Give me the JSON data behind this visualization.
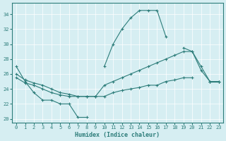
{
  "xlabel": "Humidex (Indice chaleur)",
  "bg_color": "#d6eef2",
  "line_color": "#2d7d7a",
  "grid_color": "#ffffff",
  "xlim": [
    -0.5,
    23.5
  ],
  "ylim": [
    19.5,
    35.5
  ],
  "xticks": [
    0,
    1,
    2,
    3,
    4,
    5,
    6,
    7,
    8,
    9,
    10,
    11,
    12,
    13,
    14,
    15,
    16,
    17,
    18,
    19,
    20,
    21,
    22,
    23
  ],
  "yticks": [
    20,
    22,
    24,
    26,
    28,
    30,
    32,
    34
  ],
  "line1_segs": [
    {
      "x": [
        0,
        1,
        2,
        3,
        4,
        5,
        6,
        7,
        8
      ],
      "y": [
        27,
        25,
        23.5,
        22.5,
        22.5,
        22,
        22,
        20.2,
        20.2
      ]
    },
    {
      "x": [
        10,
        11,
        12,
        13,
        14,
        15,
        16,
        17
      ],
      "y": [
        27,
        30,
        32,
        33.5,
        34.5,
        34.5,
        34.5,
        31
      ]
    },
    {
      "x": [
        19,
        20,
        21,
        22,
        23
      ],
      "y": [
        29.5,
        29,
        26.5,
        25,
        25
      ]
    }
  ],
  "line2": {
    "x": [
      0,
      1,
      2,
      3,
      4,
      5,
      6,
      7,
      8,
      9,
      10,
      11,
      12,
      13,
      14,
      15,
      16,
      17,
      18,
      19,
      20,
      21,
      22,
      23
    ],
    "y": [
      26,
      25.2,
      24.8,
      24.5,
      24,
      23.5,
      23.3,
      23,
      23,
      23,
      24.5,
      25,
      25.5,
      26,
      26.5,
      27,
      27.5,
      28,
      28.5,
      29,
      29,
      27,
      25,
      25
    ]
  },
  "line3": {
    "x": [
      0,
      1,
      2,
      3,
      4,
      5,
      6,
      7,
      8,
      9,
      10,
      11,
      12,
      13,
      14,
      15,
      16,
      17,
      18,
      19,
      20,
      21,
      22,
      23
    ],
    "y": [
      25.5,
      24.8,
      24.5,
      24,
      23.5,
      23.2,
      23,
      23,
      23,
      23,
      23,
      23.5,
      23.8,
      24,
      24.2,
      24.5,
      24.5,
      25,
      25.2,
      25.5,
      25.5,
      null,
      25,
      25
    ]
  }
}
